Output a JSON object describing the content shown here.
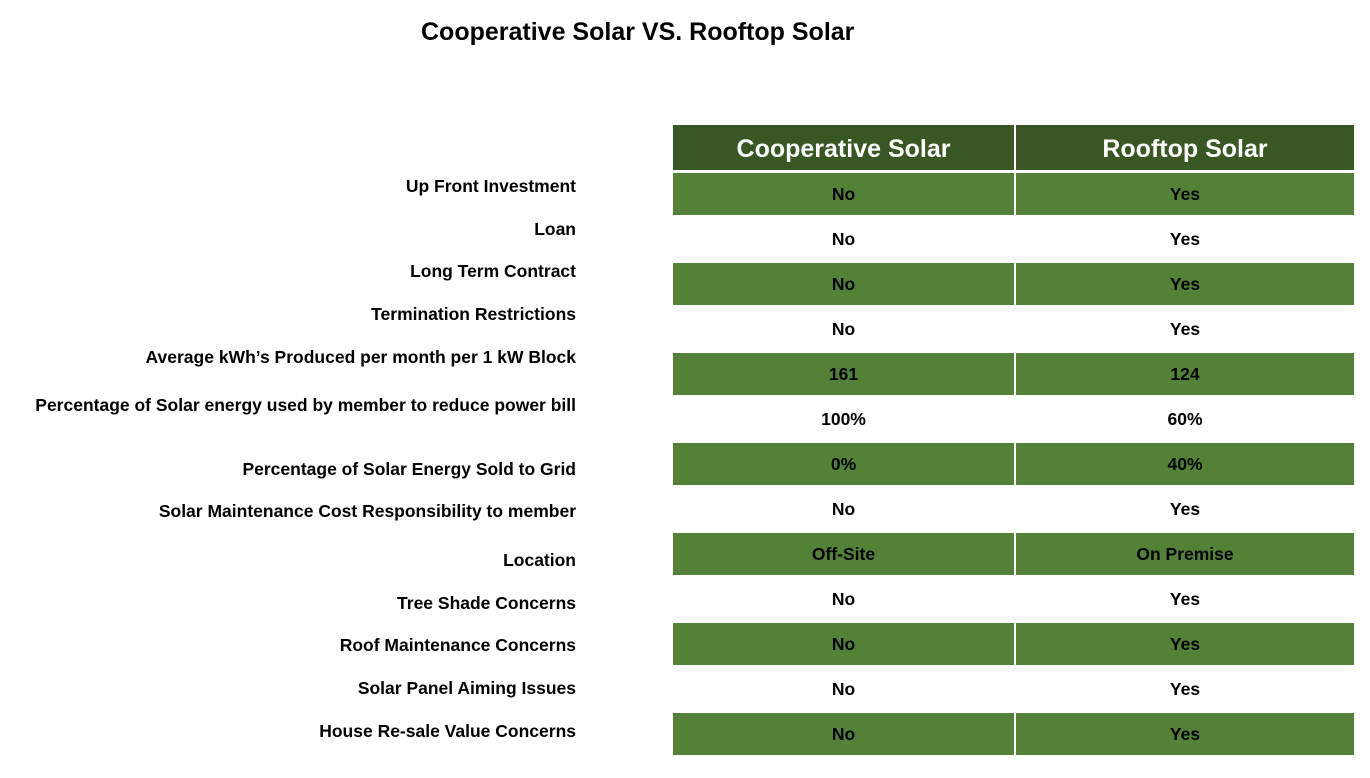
{
  "title": "Cooperative Solar VS. Rooftop Solar",
  "columns": [
    "Cooperative Solar",
    "Rooftop Solar"
  ],
  "colors": {
    "header_bg": "#385723",
    "row_green": "#538135",
    "row_white": "#ffffff"
  },
  "rows": [
    {
      "label": "Up Front Investment",
      "cooperative": "No",
      "rooftop": "Yes"
    },
    {
      "label": "Loan",
      "cooperative": "No",
      "rooftop": "Yes"
    },
    {
      "label": "Long Term Contract",
      "cooperative": "No",
      "rooftop": "Yes"
    },
    {
      "label": "Termination Restrictions",
      "cooperative": "No",
      "rooftop": "Yes"
    },
    {
      "label": "Average kWh’s Produced per month per 1 kW Block",
      "cooperative": "161",
      "rooftop": "124"
    },
    {
      "label": "Percentage of Solar energy used by member to reduce power bill",
      "cooperative": "100%",
      "rooftop": "60%"
    },
    {
      "label": "Percentage of Solar Energy Sold to Grid",
      "cooperative": "0%",
      "rooftop": "40%"
    },
    {
      "label": "Solar Maintenance Cost Responsibility to member",
      "cooperative": "No",
      "rooftop": "Yes"
    },
    {
      "label": "Location",
      "cooperative": "Off-Site",
      "rooftop": "On Premise"
    },
    {
      "label": "Tree Shade Concerns",
      "cooperative": "No",
      "rooftop": "Yes"
    },
    {
      "label": "Roof Maintenance Concerns",
      "cooperative": "No",
      "rooftop": "Yes"
    },
    {
      "label": "Solar Panel Aiming Issues",
      "cooperative": "No",
      "rooftop": "Yes"
    },
    {
      "label": "House Re-sale Value Concerns",
      "cooperative": "No",
      "rooftop": "Yes"
    }
  ]
}
